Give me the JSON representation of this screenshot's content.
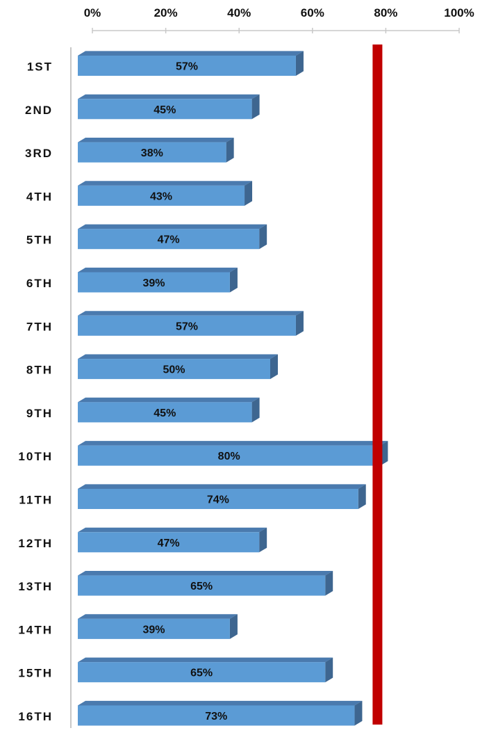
{
  "chart_data": {
    "type": "bar",
    "orientation": "horizontal",
    "style": "3d",
    "categories": [
      "1ST",
      "2ND",
      "3RD",
      "4TH",
      "5TH",
      "6TH",
      "7TH",
      "8TH",
      "9TH",
      "10TH",
      "11TH",
      "12TH",
      "13TH",
      "14TH",
      "15TH",
      "16TH"
    ],
    "values": [
      57,
      45,
      38,
      43,
      47,
      39,
      57,
      50,
      45,
      80,
      74,
      47,
      65,
      39,
      65,
      73
    ],
    "data_labels": [
      "57%",
      "45%",
      "38%",
      "43%",
      "47%",
      "39%",
      "57%",
      "50%",
      "45%",
      "80%",
      "74%",
      "47%",
      "65%",
      "39%",
      "65%",
      "73%"
    ],
    "xlim": [
      0,
      100
    ],
    "x_ticks": [
      0,
      20,
      40,
      60,
      80,
      100
    ],
    "x_tick_labels": [
      "0%",
      "20%",
      "40%",
      "60%",
      "80%",
      "100%"
    ],
    "x_axis_position": "top",
    "reference_line": {
      "value": 80,
      "color": "#c00000"
    },
    "grid": false,
    "legend": "none",
    "colors": {
      "bar_front": "#5b9bd5",
      "bar_top": "#4a7aae",
      "bar_side": "#3e6690",
      "axis": "#c8c8c8"
    }
  }
}
